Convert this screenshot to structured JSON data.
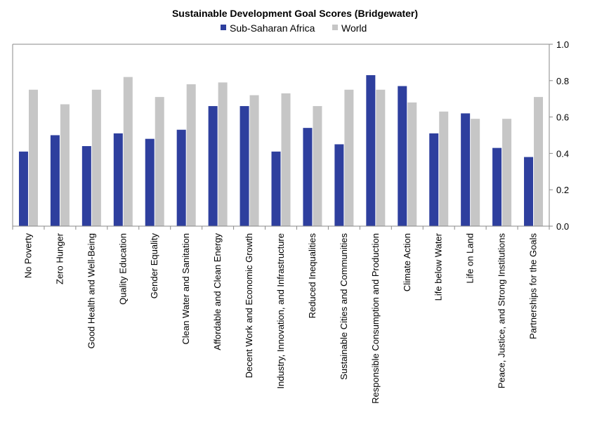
{
  "chart_data": {
    "type": "bar",
    "title": "Sustainable Development Goal Scores (Bridgewater)",
    "xlabel": "",
    "ylabel": "",
    "ylim": [
      0,
      1.0
    ],
    "yticks": [
      1.0,
      0.8,
      0.6,
      0.4,
      0.2,
      0.0
    ],
    "ytick_labels": [
      "1.0",
      "0.8",
      "0.6",
      "0.4",
      "0.2",
      "0.0"
    ],
    "legend_position": "top",
    "categories": [
      "No Poverty",
      "Zero Hunger",
      "Good Health and Well-Being",
      "Quality Education",
      "Gender Equality",
      "Clean Water and Sanitation",
      "Affordable and Clean Energy",
      "Decent Work and Economic Growth",
      "Industry, Innovation, and Infrastructure",
      "Reduced Inequalities",
      "Sustainable Cities and Communities",
      "Responsible Consumption and Production",
      "Climate Action",
      "Life below Water",
      "Life on Land",
      "Peace, Justice, and Strong Institutions",
      "Partnerships for the Goals"
    ],
    "series": [
      {
        "name": "Sub-Saharan Africa",
        "color": "#2e3f9e",
        "values": [
          0.41,
          0.5,
          0.44,
          0.51,
          0.48,
          0.53,
          0.66,
          0.66,
          0.41,
          0.54,
          0.45,
          0.83,
          0.77,
          0.51,
          0.62,
          0.43,
          0.38
        ]
      },
      {
        "name": "World",
        "color": "#c6c6c6",
        "values": [
          0.75,
          0.67,
          0.75,
          0.82,
          0.71,
          0.78,
          0.79,
          0.72,
          0.73,
          0.66,
          0.75,
          0.75,
          0.68,
          0.63,
          0.59,
          0.59,
          0.71
        ]
      }
    ]
  }
}
